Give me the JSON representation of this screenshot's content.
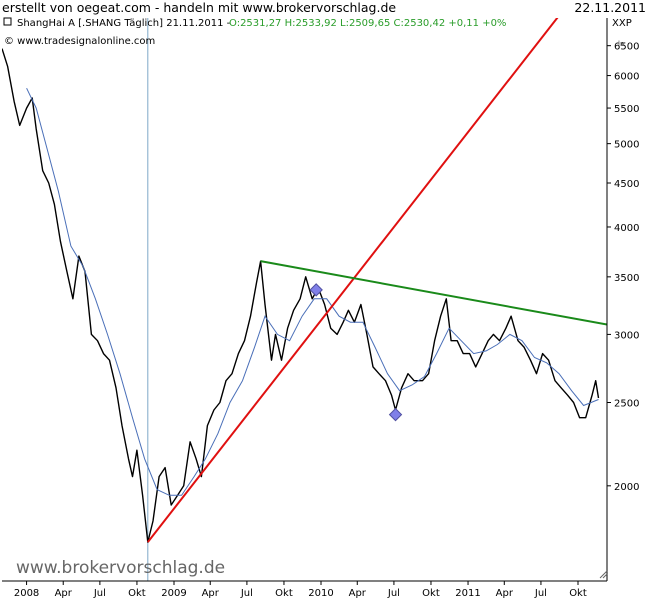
{
  "header": {
    "title": "erstellt von oegeat.com - handeln mit www.brokervorschlag.de",
    "date": "22.11.2011"
  },
  "symbol_line": {
    "name": "ShangHai A [.SHANG  Täglich] 21.11.2011 - ",
    "quote": "O:2531,27 H:2533,92 L:2509,65 C:2530,42 +0,11 +0%"
  },
  "copyright": "© www.tradesignalonline.com",
  "watermark": "www.brokervorschlag.de",
  "exchange": "XXP",
  "chart_data": {
    "type": "line",
    "title": "ShangHai A [.SHANG  Täglich]",
    "y_scale": "log",
    "ylim": [
      1550,
      7000
    ],
    "y_ticks": [
      2000,
      2500,
      3000,
      3500,
      4000,
      4500,
      5000,
      5500,
      6000,
      6500
    ],
    "x_tick_labels": [
      "2008",
      "Apr",
      "Jul",
      "Okt",
      "2009",
      "Apr",
      "Jul",
      "Okt",
      "2010",
      "Apr",
      "Jul",
      "Okt",
      "2011",
      "Apr",
      "Jul",
      "Okt"
    ],
    "x_range": [
      "2007-11-01",
      "2011-12-12"
    ],
    "grid": false,
    "series": [
      {
        "values": [
          [
            "2007-11-01",
            6450
          ],
          [
            "2007-11-15",
            6150
          ],
          [
            "2007-12-01",
            5600
          ],
          [
            "2007-12-15",
            5250
          ],
          [
            "2008-01-01",
            5500
          ],
          [
            "2008-01-15",
            5650
          ],
          [
            "2008-01-25",
            5200
          ],
          [
            "2008-02-10",
            4650
          ],
          [
            "2008-02-25",
            4500
          ],
          [
            "2008-03-10",
            4250
          ],
          [
            "2008-03-25",
            3850
          ],
          [
            "2008-04-10",
            3550
          ],
          [
            "2008-04-25",
            3300
          ],
          [
            "2008-05-10",
            3700
          ],
          [
            "2008-05-25",
            3550
          ],
          [
            "2008-06-10",
            3000
          ],
          [
            "2008-06-25",
            2950
          ],
          [
            "2008-07-10",
            2850
          ],
          [
            "2008-07-25",
            2800
          ],
          [
            "2008-08-10",
            2600
          ],
          [
            "2008-08-25",
            2350
          ],
          [
            "2008-09-10",
            2150
          ],
          [
            "2008-09-20",
            2050
          ],
          [
            "2008-10-01",
            2200
          ],
          [
            "2008-10-15",
            1950
          ],
          [
            "2008-10-28",
            1720
          ],
          [
            "2008-11-10",
            1820
          ],
          [
            "2008-11-25",
            2050
          ],
          [
            "2008-12-10",
            2100
          ],
          [
            "2008-12-25",
            1900
          ],
          [
            "2009-01-10",
            1950
          ],
          [
            "2009-01-25",
            2000
          ],
          [
            "2009-02-10",
            2250
          ],
          [
            "2009-02-25",
            2150
          ],
          [
            "2009-03-10",
            2050
          ],
          [
            "2009-03-25",
            2350
          ],
          [
            "2009-04-10",
            2450
          ],
          [
            "2009-04-25",
            2500
          ],
          [
            "2009-05-10",
            2650
          ],
          [
            "2009-05-25",
            2700
          ],
          [
            "2009-06-10",
            2850
          ],
          [
            "2009-06-25",
            2950
          ],
          [
            "2009-07-10",
            3150
          ],
          [
            "2009-07-25",
            3450
          ],
          [
            "2009-08-04",
            3650
          ],
          [
            "2009-08-15",
            3250
          ],
          [
            "2009-08-31",
            2800
          ],
          [
            "2009-09-10",
            3000
          ],
          [
            "2009-09-25",
            2800
          ],
          [
            "2009-10-10",
            3050
          ],
          [
            "2009-10-25",
            3200
          ],
          [
            "2009-11-10",
            3300
          ],
          [
            "2009-11-24",
            3500
          ],
          [
            "2009-12-10",
            3300
          ],
          [
            "2009-12-25",
            3400
          ],
          [
            "2010-01-10",
            3250
          ],
          [
            "2010-01-25",
            3050
          ],
          [
            "2010-02-10",
            3000
          ],
          [
            "2010-02-25",
            3100
          ],
          [
            "2010-03-10",
            3200
          ],
          [
            "2010-03-25",
            3100
          ],
          [
            "2010-04-10",
            3250
          ],
          [
            "2010-04-25",
            3000
          ],
          [
            "2010-05-10",
            2750
          ],
          [
            "2010-05-25",
            2700
          ],
          [
            "2010-06-10",
            2650
          ],
          [
            "2010-06-25",
            2550
          ],
          [
            "2010-07-05",
            2450
          ],
          [
            "2010-07-20",
            2600
          ],
          [
            "2010-08-05",
            2700
          ],
          [
            "2010-08-20",
            2650
          ],
          [
            "2010-09-10",
            2650
          ],
          [
            "2010-09-25",
            2700
          ],
          [
            "2010-10-10",
            2950
          ],
          [
            "2010-10-25",
            3150
          ],
          [
            "2010-11-08",
            3300
          ],
          [
            "2010-11-20",
            2950
          ],
          [
            "2010-12-05",
            2950
          ],
          [
            "2010-12-20",
            2850
          ],
          [
            "2011-01-05",
            2850
          ],
          [
            "2011-01-20",
            2750
          ],
          [
            "2011-02-05",
            2850
          ],
          [
            "2011-02-20",
            2950
          ],
          [
            "2011-03-05",
            3000
          ],
          [
            "2011-03-20",
            2950
          ],
          [
            "2011-04-05",
            3050
          ],
          [
            "2011-04-18",
            3150
          ],
          [
            "2011-05-05",
            2950
          ],
          [
            "2011-05-20",
            2900
          ],
          [
            "2011-06-05",
            2800
          ],
          [
            "2011-06-20",
            2700
          ],
          [
            "2011-07-05",
            2850
          ],
          [
            "2011-07-20",
            2800
          ],
          [
            "2011-08-05",
            2650
          ],
          [
            "2011-08-20",
            2600
          ],
          [
            "2011-09-05",
            2550
          ],
          [
            "2011-09-20",
            2500
          ],
          [
            "2011-10-05",
            2400
          ],
          [
            "2011-10-20",
            2400
          ],
          [
            "2011-11-05",
            2550
          ],
          [
            "2011-11-14",
            2650
          ],
          [
            "2011-11-21",
            2530
          ]
        ]
      },
      {
        "values": [
          [
            "2008-01-01",
            5800
          ],
          [
            "2008-01-25",
            5500
          ],
          [
            "2008-02-20",
            4950
          ],
          [
            "2008-03-20",
            4400
          ],
          [
            "2008-04-20",
            3800
          ],
          [
            "2008-05-20",
            3600
          ],
          [
            "2008-06-20",
            3300
          ],
          [
            "2008-07-20",
            3000
          ],
          [
            "2008-08-20",
            2700
          ],
          [
            "2008-09-20",
            2400
          ],
          [
            "2008-10-20",
            2150
          ],
          [
            "2008-11-20",
            1980
          ],
          [
            "2008-12-20",
            1950
          ],
          [
            "2009-01-20",
            1950
          ],
          [
            "2009-02-20",
            2050
          ],
          [
            "2009-03-20",
            2150
          ],
          [
            "2009-04-20",
            2300
          ],
          [
            "2009-05-20",
            2500
          ],
          [
            "2009-06-20",
            2650
          ],
          [
            "2009-07-20",
            2900
          ],
          [
            "2009-08-15",
            3150
          ],
          [
            "2009-09-15",
            3000
          ],
          [
            "2009-10-15",
            2950
          ],
          [
            "2009-11-15",
            3150
          ],
          [
            "2009-12-15",
            3300
          ],
          [
            "2010-01-15",
            3300
          ],
          [
            "2010-02-15",
            3150
          ],
          [
            "2010-03-15",
            3100
          ],
          [
            "2010-04-15",
            3100
          ],
          [
            "2010-05-15",
            2900
          ],
          [
            "2010-06-15",
            2700
          ],
          [
            "2010-07-15",
            2580
          ],
          [
            "2010-08-15",
            2620
          ],
          [
            "2010-09-15",
            2680
          ],
          [
            "2010-10-15",
            2850
          ],
          [
            "2010-11-15",
            3050
          ],
          [
            "2010-12-15",
            2950
          ],
          [
            "2011-01-15",
            2850
          ],
          [
            "2011-02-15",
            2870
          ],
          [
            "2011-03-15",
            2920
          ],
          [
            "2011-04-15",
            3000
          ],
          [
            "2011-05-15",
            2950
          ],
          [
            "2011-06-15",
            2820
          ],
          [
            "2011-07-15",
            2780
          ],
          [
            "2011-08-15",
            2700
          ],
          [
            "2011-09-15",
            2580
          ],
          [
            "2011-10-15",
            2480
          ],
          [
            "2011-11-21",
            2520
          ]
        ]
      }
    ],
    "lines": [
      {
        "from": [
          "2008-10-28",
          1720
        ],
        "to": [
          "2011-11-15",
          8000
        ],
        "color": "#e01010"
      },
      {
        "from": [
          "2009-08-04",
          3650
        ],
        "to": [
          "2011-12-12",
          3080
        ],
        "color": "#1a8a1a"
      },
      {
        "vertical_at": "2008-10-28",
        "color": "#7fa8c8"
      }
    ],
    "markers": [
      {
        "x": "2009-12-20",
        "y": 3380,
        "color": "#8080e8"
      },
      {
        "x": "2010-07-05",
        "y": 2420,
        "color": "#8080e8"
      }
    ]
  }
}
